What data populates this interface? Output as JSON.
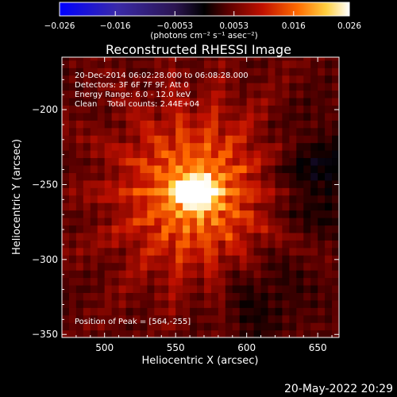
{
  "colors": {
    "background": "#000000",
    "text": "#ffffff",
    "colorbar_stops": [
      "#0000ff",
      "#3a2aa8",
      "#2b1550",
      "#000000",
      "#5a0000",
      "#c01000",
      "#ff6a00",
      "#ffd040",
      "#ffffff"
    ]
  },
  "footer": {
    "date": "20-May-2022 20:29"
  },
  "chart_data": {
    "type": "heatmap",
    "title": "Reconstructed RHESSI Image",
    "xlabel": "Heliocentric X (arcsec)",
    "ylabel": "Heliocentric Y (arcsec)",
    "xlim": [
      470,
      665
    ],
    "ylim": [
      -352,
      -165
    ],
    "xticks": [
      500,
      550,
      600,
      650
    ],
    "yticks": [
      -200,
      -250,
      -300,
      -350
    ],
    "xtick_labels": [
      "500",
      "550",
      "600",
      "650"
    ],
    "ytick_labels": [
      "-200",
      "-250",
      "-300",
      "-350"
    ],
    "colorbar": {
      "min": -0.026,
      "max": 0.026,
      "ticks": [
        -0.026,
        -0.016,
        -0.0053,
        0.0053,
        0.016,
        0.026
      ],
      "tick_labels": [
        "-0.026",
        "-0.016",
        "-0.0053",
        "0.0053",
        "0.016",
        "0.026"
      ],
      "units": "(photons cm⁻² s⁻¹ asec⁻²)"
    },
    "annotations": [
      "20-Dec-2014 06:02:28.000 to 06:08:28.000",
      "Detectors: 3F 6F 7F 9F, Att 0",
      "Energy Range: 6.0 - 12.0 keV",
      "Clean    Total counts: 2.44E+04"
    ],
    "peak_label": "Position of Peak = [564,-255]",
    "peak": [
      564,
      -255
    ],
    "source_rms_arcsec": 7,
    "grid": false,
    "legend": "none"
  }
}
